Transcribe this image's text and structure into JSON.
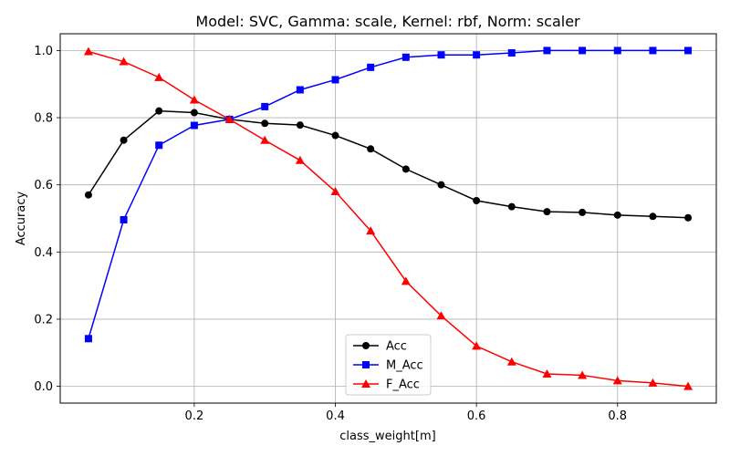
{
  "chart_data": {
    "type": "line",
    "title": "Model: SVC, Gamma: scale, Kernel: rbf, Norm: scaler",
    "xlabel": "class_weight[m]",
    "ylabel": "Accuracy",
    "xlim": [
      0.01,
      0.94
    ],
    "ylim": [
      -0.05,
      1.05
    ],
    "xticks": [
      0.2,
      0.4,
      0.6,
      0.8
    ],
    "xtick_labels": [
      "0.2",
      "0.4",
      "0.6",
      "0.8"
    ],
    "yticks": [
      0.0,
      0.2,
      0.4,
      0.6,
      0.8,
      1.0
    ],
    "ytick_labels": [
      "0.0",
      "0.2",
      "0.4",
      "0.6",
      "0.8",
      "1.0"
    ],
    "grid": true,
    "legend_position": "lower-center",
    "x": [
      0.05,
      0.1,
      0.15,
      0.2,
      0.25,
      0.3,
      0.35,
      0.4,
      0.45,
      0.5,
      0.55,
      0.6,
      0.65,
      0.7,
      0.75,
      0.8,
      0.85,
      0.9
    ],
    "series": [
      {
        "name": "Acc",
        "color": "#000000",
        "marker": "circle",
        "values": [
          0.57,
          0.733,
          0.82,
          0.815,
          0.795,
          0.783,
          0.778,
          0.747,
          0.707,
          0.647,
          0.6,
          0.553,
          0.535,
          0.52,
          0.518,
          0.51,
          0.506,
          0.502
        ]
      },
      {
        "name": "M_Acc",
        "color": "#0000ff",
        "marker": "square",
        "values": [
          0.142,
          0.496,
          0.718,
          0.777,
          0.795,
          0.833,
          0.883,
          0.913,
          0.95,
          0.98,
          0.987,
          0.987,
          0.993,
          1.0,
          1.0,
          1.0,
          1.0,
          1.0
        ]
      },
      {
        "name": "F_Acc",
        "color": "#ff0000",
        "marker": "triangle",
        "values": [
          0.997,
          0.967,
          0.92,
          0.853,
          0.795,
          0.733,
          0.673,
          0.58,
          0.463,
          0.313,
          0.21,
          0.12,
          0.073,
          0.037,
          0.033,
          0.017,
          0.01,
          0.0
        ]
      }
    ]
  }
}
